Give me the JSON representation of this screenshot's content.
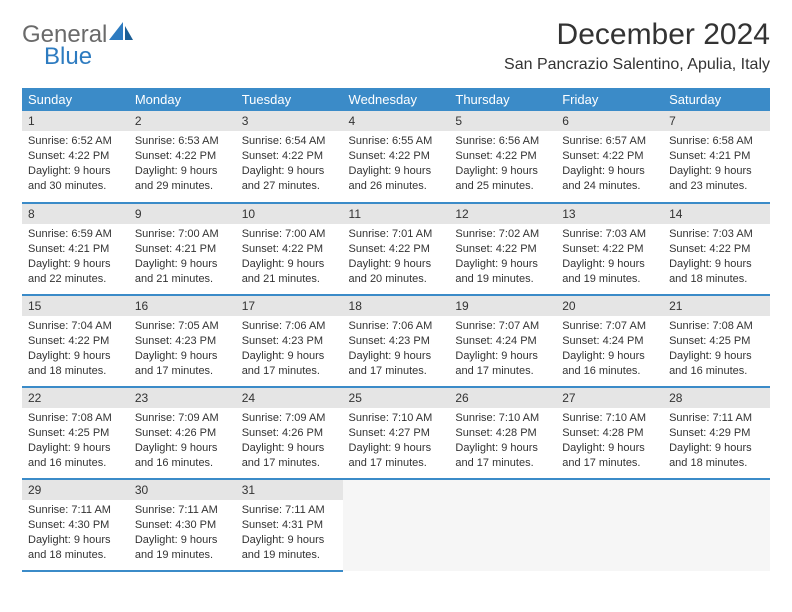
{
  "logo": {
    "general": "General",
    "blue": "Blue"
  },
  "title": "December 2024",
  "location": "San Pancrazio Salentino, Apulia, Italy",
  "headers": [
    "Sunday",
    "Monday",
    "Tuesday",
    "Wednesday",
    "Thursday",
    "Friday",
    "Saturday"
  ],
  "colors": {
    "header_bg": "#3b8bc8",
    "header_text": "#ffffff",
    "daynum_bg": "#e5e5e5",
    "border": "#3b8bc8",
    "logo_gray": "#6a6a6a",
    "logo_blue": "#2d7bc0"
  },
  "weeks": [
    [
      {
        "n": "1",
        "sr": "Sunrise: 6:52 AM",
        "ss": "Sunset: 4:22 PM",
        "d1": "Daylight: 9 hours",
        "d2": "and 30 minutes."
      },
      {
        "n": "2",
        "sr": "Sunrise: 6:53 AM",
        "ss": "Sunset: 4:22 PM",
        "d1": "Daylight: 9 hours",
        "d2": "and 29 minutes."
      },
      {
        "n": "3",
        "sr": "Sunrise: 6:54 AM",
        "ss": "Sunset: 4:22 PM",
        "d1": "Daylight: 9 hours",
        "d2": "and 27 minutes."
      },
      {
        "n": "4",
        "sr": "Sunrise: 6:55 AM",
        "ss": "Sunset: 4:22 PM",
        "d1": "Daylight: 9 hours",
        "d2": "and 26 minutes."
      },
      {
        "n": "5",
        "sr": "Sunrise: 6:56 AM",
        "ss": "Sunset: 4:22 PM",
        "d1": "Daylight: 9 hours",
        "d2": "and 25 minutes."
      },
      {
        "n": "6",
        "sr": "Sunrise: 6:57 AM",
        "ss": "Sunset: 4:22 PM",
        "d1": "Daylight: 9 hours",
        "d2": "and 24 minutes."
      },
      {
        "n": "7",
        "sr": "Sunrise: 6:58 AM",
        "ss": "Sunset: 4:21 PM",
        "d1": "Daylight: 9 hours",
        "d2": "and 23 minutes."
      }
    ],
    [
      {
        "n": "8",
        "sr": "Sunrise: 6:59 AM",
        "ss": "Sunset: 4:21 PM",
        "d1": "Daylight: 9 hours",
        "d2": "and 22 minutes."
      },
      {
        "n": "9",
        "sr": "Sunrise: 7:00 AM",
        "ss": "Sunset: 4:21 PM",
        "d1": "Daylight: 9 hours",
        "d2": "and 21 minutes."
      },
      {
        "n": "10",
        "sr": "Sunrise: 7:00 AM",
        "ss": "Sunset: 4:22 PM",
        "d1": "Daylight: 9 hours",
        "d2": "and 21 minutes."
      },
      {
        "n": "11",
        "sr": "Sunrise: 7:01 AM",
        "ss": "Sunset: 4:22 PM",
        "d1": "Daylight: 9 hours",
        "d2": "and 20 minutes."
      },
      {
        "n": "12",
        "sr": "Sunrise: 7:02 AM",
        "ss": "Sunset: 4:22 PM",
        "d1": "Daylight: 9 hours",
        "d2": "and 19 minutes."
      },
      {
        "n": "13",
        "sr": "Sunrise: 7:03 AM",
        "ss": "Sunset: 4:22 PM",
        "d1": "Daylight: 9 hours",
        "d2": "and 19 minutes."
      },
      {
        "n": "14",
        "sr": "Sunrise: 7:03 AM",
        "ss": "Sunset: 4:22 PM",
        "d1": "Daylight: 9 hours",
        "d2": "and 18 minutes."
      }
    ],
    [
      {
        "n": "15",
        "sr": "Sunrise: 7:04 AM",
        "ss": "Sunset: 4:22 PM",
        "d1": "Daylight: 9 hours",
        "d2": "and 18 minutes."
      },
      {
        "n": "16",
        "sr": "Sunrise: 7:05 AM",
        "ss": "Sunset: 4:23 PM",
        "d1": "Daylight: 9 hours",
        "d2": "and 17 minutes."
      },
      {
        "n": "17",
        "sr": "Sunrise: 7:06 AM",
        "ss": "Sunset: 4:23 PM",
        "d1": "Daylight: 9 hours",
        "d2": "and 17 minutes."
      },
      {
        "n": "18",
        "sr": "Sunrise: 7:06 AM",
        "ss": "Sunset: 4:23 PM",
        "d1": "Daylight: 9 hours",
        "d2": "and 17 minutes."
      },
      {
        "n": "19",
        "sr": "Sunrise: 7:07 AM",
        "ss": "Sunset: 4:24 PM",
        "d1": "Daylight: 9 hours",
        "d2": "and 17 minutes."
      },
      {
        "n": "20",
        "sr": "Sunrise: 7:07 AM",
        "ss": "Sunset: 4:24 PM",
        "d1": "Daylight: 9 hours",
        "d2": "and 16 minutes."
      },
      {
        "n": "21",
        "sr": "Sunrise: 7:08 AM",
        "ss": "Sunset: 4:25 PM",
        "d1": "Daylight: 9 hours",
        "d2": "and 16 minutes."
      }
    ],
    [
      {
        "n": "22",
        "sr": "Sunrise: 7:08 AM",
        "ss": "Sunset: 4:25 PM",
        "d1": "Daylight: 9 hours",
        "d2": "and 16 minutes."
      },
      {
        "n": "23",
        "sr": "Sunrise: 7:09 AM",
        "ss": "Sunset: 4:26 PM",
        "d1": "Daylight: 9 hours",
        "d2": "and 16 minutes."
      },
      {
        "n": "24",
        "sr": "Sunrise: 7:09 AM",
        "ss": "Sunset: 4:26 PM",
        "d1": "Daylight: 9 hours",
        "d2": "and 17 minutes."
      },
      {
        "n": "25",
        "sr": "Sunrise: 7:10 AM",
        "ss": "Sunset: 4:27 PM",
        "d1": "Daylight: 9 hours",
        "d2": "and 17 minutes."
      },
      {
        "n": "26",
        "sr": "Sunrise: 7:10 AM",
        "ss": "Sunset: 4:28 PM",
        "d1": "Daylight: 9 hours",
        "d2": "and 17 minutes."
      },
      {
        "n": "27",
        "sr": "Sunrise: 7:10 AM",
        "ss": "Sunset: 4:28 PM",
        "d1": "Daylight: 9 hours",
        "d2": "and 17 minutes."
      },
      {
        "n": "28",
        "sr": "Sunrise: 7:11 AM",
        "ss": "Sunset: 4:29 PM",
        "d1": "Daylight: 9 hours",
        "d2": "and 18 minutes."
      }
    ],
    [
      {
        "n": "29",
        "sr": "Sunrise: 7:11 AM",
        "ss": "Sunset: 4:30 PM",
        "d1": "Daylight: 9 hours",
        "d2": "and 18 minutes."
      },
      {
        "n": "30",
        "sr": "Sunrise: 7:11 AM",
        "ss": "Sunset: 4:30 PM",
        "d1": "Daylight: 9 hours",
        "d2": "and 19 minutes."
      },
      {
        "n": "31",
        "sr": "Sunrise: 7:11 AM",
        "ss": "Sunset: 4:31 PM",
        "d1": "Daylight: 9 hours",
        "d2": "and 19 minutes."
      },
      null,
      null,
      null,
      null
    ]
  ]
}
